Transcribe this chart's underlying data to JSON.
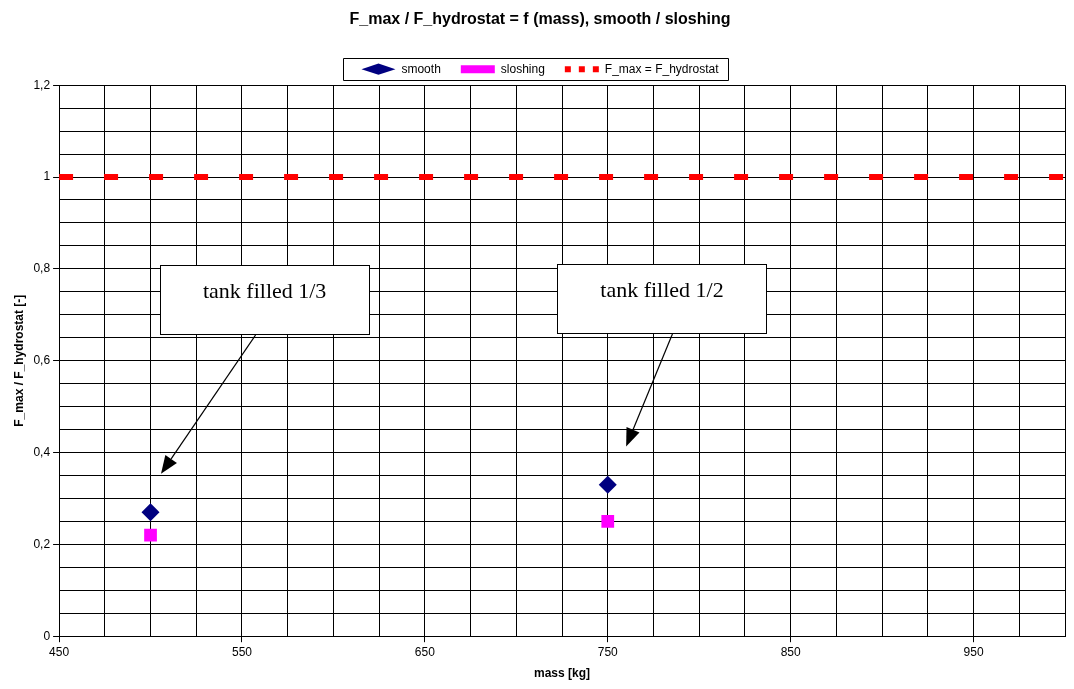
{
  "chart_data": {
    "type": "scatter",
    "title": "F_max / F_hydrostat = f (mass), smooth / sloshing",
    "xlabel": "mass [kg]",
    "ylabel": "F_max / F_hydrostat [-]",
    "series": [
      {
        "name": "smooth",
        "color": "#000080",
        "marker": "diamond",
        "x": [
          500,
          750
        ],
        "values": [
          0.27,
          0.33
        ]
      },
      {
        "name": "sloshing",
        "color": "#ff00ff",
        "marker": "square",
        "x": [
          500,
          750
        ],
        "values": [
          0.22,
          0.25
        ]
      },
      {
        "name": "F_max = F_hydrostat",
        "type": "line",
        "color": "#ff0000",
        "marker": "none",
        "line_style": "dashed",
        "x": [
          450,
          1000
        ],
        "values": [
          1,
          1
        ]
      }
    ],
    "xlim": [
      450,
      1000
    ],
    "xticks": [
      450,
      {
        "value": 475,
        "label": null
      },
      {
        "value": 500,
        "label": null
      },
      {
        "value": 525,
        "label": null
      },
      550,
      {
        "value": 575,
        "label": null
      },
      {
        "value": 600,
        "label": null
      },
      {
        "value": 625,
        "label": null
      },
      650,
      {
        "value": 675,
        "label": null
      },
      {
        "value": 700,
        "label": null
      },
      {
        "value": 725,
        "label": null
      },
      750,
      {
        "value": 775,
        "label": null
      },
      {
        "value": 800,
        "label": null
      },
      {
        "value": 825,
        "label": null
      },
      850,
      {
        "value": 875,
        "label": null
      },
      {
        "value": 900,
        "label": null
      },
      {
        "value": 925,
        "label": null
      },
      950,
      {
        "value": 975,
        "label": null
      },
      {
        "value": 1000,
        "label": null
      }
    ],
    "ylim": [
      0,
      1.2
    ],
    "yticks": [
      0,
      {
        "value": 0.05,
        "label": null
      },
      {
        "value": 0.1,
        "label": null
      },
      {
        "value": 0.15,
        "label": null
      },
      {
        "value": 0.2,
        "label": "0,2"
      },
      {
        "value": 0.25,
        "label": null
      },
      {
        "value": 0.3,
        "label": null
      },
      {
        "value": 0.35,
        "label": null
      },
      {
        "value": 0.4,
        "label": "0,4"
      },
      {
        "value": 0.45,
        "label": null
      },
      {
        "value": 0.5,
        "label": null
      },
      {
        "value": 0.55,
        "label": null
      },
      {
        "value": 0.6,
        "label": "0,6"
      },
      {
        "value": 0.65,
        "label": null
      },
      {
        "value": 0.7,
        "label": null
      },
      {
        "value": 0.75,
        "label": null
      },
      {
        "value": 0.8,
        "label": "0,8"
      },
      {
        "value": 0.85,
        "label": null
      },
      {
        "value": 0.9,
        "label": null
      },
      {
        "value": 0.95,
        "label": null
      },
      1,
      {
        "value": 1.05,
        "label": null
      },
      {
        "value": 1.1,
        "label": null
      },
      {
        "value": 1.15,
        "label": null
      },
      {
        "value": 1.2,
        "label": "1,2"
      }
    ],
    "grid": true,
    "legend": "top",
    "annotations": [
      "tank filled 1/3",
      "tank filled 1/2"
    ]
  }
}
